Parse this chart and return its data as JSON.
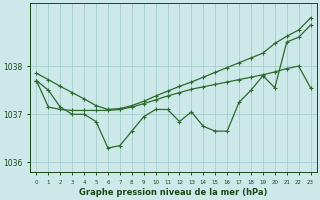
{
  "xlabel": "Graphe pression niveau de la mer (hPa)",
  "hours": [
    0,
    1,
    2,
    3,
    4,
    5,
    6,
    7,
    8,
    9,
    10,
    11,
    12,
    13,
    14,
    15,
    16,
    17,
    18,
    19,
    20,
    21,
    22,
    23
  ],
  "lineA": [
    1037.85,
    1037.72,
    1037.58,
    1037.45,
    1037.32,
    1037.18,
    1037.1,
    1037.12,
    1037.18,
    1037.27,
    1037.38,
    1037.48,
    1037.58,
    1037.67,
    1037.77,
    1037.87,
    1037.97,
    1038.07,
    1038.17,
    1038.27,
    1038.47,
    1038.62,
    1038.75,
    1039.0
  ],
  "lineB": [
    1037.7,
    1037.15,
    1037.1,
    1037.08,
    1037.08,
    1037.08,
    1037.08,
    1037.1,
    1037.15,
    1037.22,
    1037.3,
    1037.38,
    1037.45,
    1037.52,
    1037.57,
    1037.62,
    1037.67,
    1037.72,
    1037.77,
    1037.82,
    1037.88,
    1037.95,
    1038.0,
    1037.55
  ],
  "lineC": [
    1037.7,
    1037.5,
    1037.15,
    1037.0,
    1037.0,
    1036.85,
    1036.3,
    1036.35,
    1036.65,
    1036.95,
    1037.1,
    1037.1,
    1036.85,
    1037.05,
    1036.75,
    1036.65,
    1036.65,
    1037.25,
    1037.5,
    1037.8,
    1037.55,
    1038.5,
    1038.6,
    1038.85
  ],
  "line_color": "#2d6a2d",
  "bg_color": "#cce8e8",
  "grid_color": "#9ec8c8",
  "text_color": "#1a4a1a",
  "ylim": [
    1035.8,
    1039.3
  ],
  "yticks": [
    1036,
    1037,
    1038
  ],
  "xticks": [
    0,
    1,
    2,
    3,
    4,
    5,
    6,
    7,
    8,
    9,
    10,
    11,
    12,
    13,
    14,
    15,
    16,
    17,
    18,
    19,
    20,
    21,
    22,
    23
  ]
}
